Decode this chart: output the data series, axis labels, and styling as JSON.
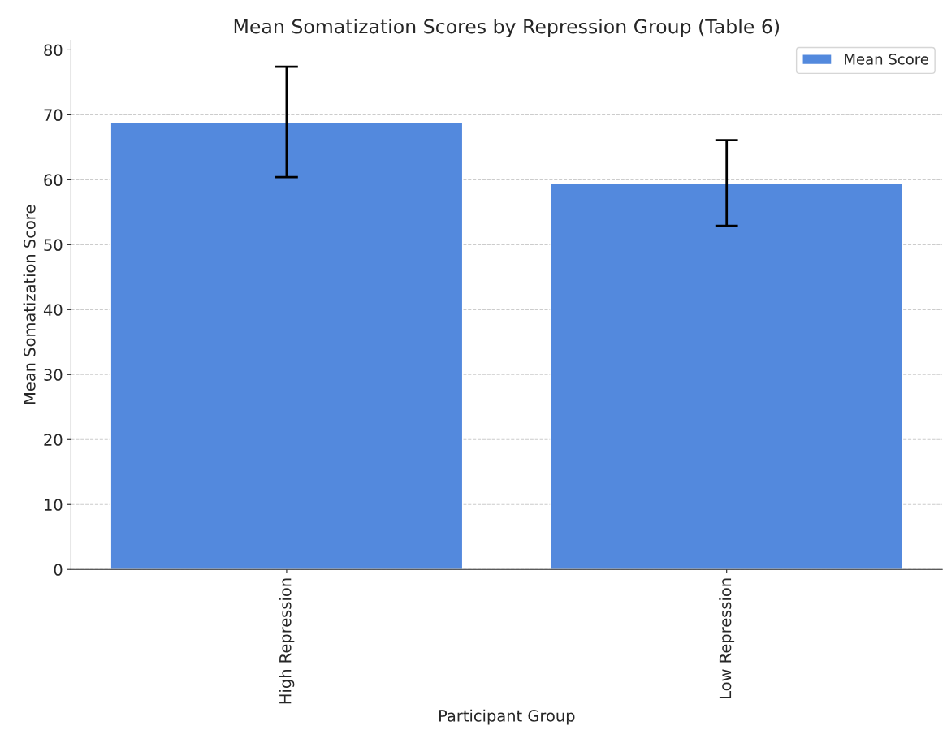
{
  "chart_data": {
    "type": "bar",
    "title": "Mean Somatization Scores by Repression Group (Table 6)",
    "xlabel": "Participant Group",
    "ylabel": "Mean Somatization Score",
    "categories": [
      "High Repression",
      "Low Repression"
    ],
    "series": [
      {
        "name": "Mean Score",
        "color": "#5389dd",
        "values": [
          68.9,
          59.5
        ],
        "errors": [
          8.5,
          6.6
        ]
      }
    ],
    "ylim": [
      0,
      81.5
    ],
    "yticks": [
      0,
      10,
      20,
      30,
      40,
      50,
      60,
      70,
      80
    ],
    "grid": "y",
    "legend": "top right"
  }
}
